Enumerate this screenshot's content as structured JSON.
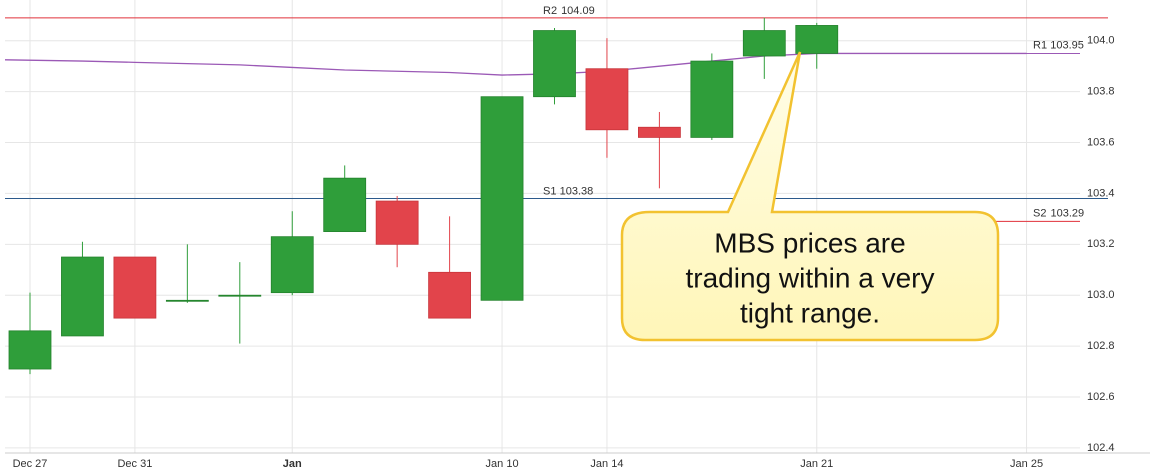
{
  "chart_data": {
    "type": "candlestick",
    "categories": [
      "Dec 27",
      null,
      "Dec 31",
      null,
      null,
      "Jan",
      null,
      null,
      null,
      "Jan 10",
      null,
      "Jan 14",
      null,
      null,
      null,
      "Jan 21",
      null,
      null,
      null,
      "Jan 25"
    ],
    "open": [
      102.71,
      102.84,
      103.15,
      102.98,
      103.0,
      103.01,
      103.25,
      103.37,
      103.09,
      102.98,
      103.78,
      103.89,
      103.66,
      103.62,
      103.94,
      103.95,
      null,
      null,
      null,
      null
    ],
    "high": [
      103.01,
      103.21,
      103.15,
      103.2,
      103.13,
      103.33,
      103.51,
      103.39,
      103.31,
      103.78,
      104.05,
      104.01,
      103.72,
      103.95,
      104.09,
      104.07,
      null,
      null,
      null,
      null
    ],
    "low": [
      102.69,
      102.84,
      102.91,
      102.97,
      102.81,
      103.0,
      103.25,
      103.11,
      102.91,
      102.98,
      103.75,
      103.54,
      103.42,
      103.61,
      103.85,
      103.89,
      null,
      null,
      null,
      null
    ],
    "close": [
      102.86,
      103.15,
      102.91,
      102.98,
      103.0,
      103.23,
      103.46,
      103.2,
      102.91,
      103.78,
      104.04,
      103.65,
      103.62,
      103.92,
      104.04,
      104.06,
      null,
      null,
      null,
      null
    ],
    "up_color": "#2f9e3a",
    "down_color": "#e2444b",
    "moving_average": {
      "color": "#9b59b6",
      "values": [
        103.925,
        103.92,
        103.915,
        103.91,
        103.905,
        103.895,
        103.885,
        103.88,
        103.875,
        103.865,
        103.87,
        103.88,
        103.9,
        103.92,
        103.94,
        103.95,
        103.95,
        103.95,
        103.95,
        103.95
      ]
    },
    "levels": [
      {
        "name": "R2",
        "value": 104.09,
        "color": "#e0303a"
      },
      {
        "name": "R1",
        "value": 103.95,
        "color": "#9b59b6"
      },
      {
        "name": "S1",
        "value": 103.38,
        "color": "#2c5a8c"
      },
      {
        "name": "S2",
        "value": 103.29,
        "color": "#e0303a"
      }
    ],
    "ylim": [
      102.38,
      104.16
    ],
    "yticks": [
      102.4,
      102.6,
      102.8,
      {
        "value": 103,
        "label": "103.0"
      },
      103.2,
      103.4,
      103.6,
      103.8,
      {
        "value": 104,
        "label": "104.0"
      }
    ],
    "grid": true,
    "annotation": [
      "MBS prices are",
      "trading within a very",
      "tight range."
    ]
  }
}
